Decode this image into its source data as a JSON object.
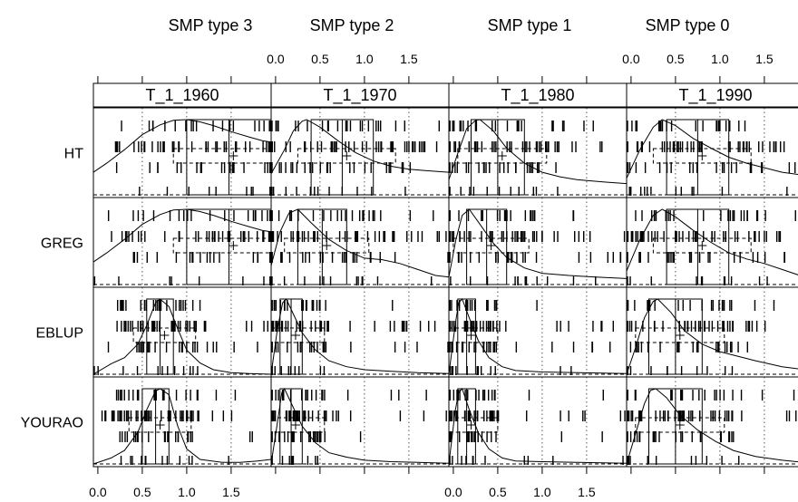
{
  "top_labels": [
    "SMP type 3",
    "SMP type 2",
    "SMP type 1",
    "SMP type 0"
  ],
  "chart_data": {
    "type": "trellis density / rug plot",
    "x_tick_labels": [
      "0.0",
      "0.5",
      "1.0",
      "1.5"
    ],
    "x_ticks": [
      0,
      0.5,
      1.0,
      1.5
    ],
    "xlim": [
      -0.05,
      1.95
    ],
    "top_axis_panels": [
      1,
      3
    ],
    "bottom_axis_panels": [
      0,
      2
    ],
    "columns": [
      "T_1_1960",
      "T_1_1970",
      "T_1_1980",
      "T_1_1990"
    ],
    "rows": [
      "HT",
      "GREG",
      "EBLUP",
      "YOURAO"
    ],
    "reference_lines": [
      0.5,
      1.0,
      1.5
    ],
    "density": {
      "T_1_1960": {
        "HT": [
          [
            -0.05,
            0.3
          ],
          [
            0.1,
            0.42
          ],
          [
            0.3,
            0.6
          ],
          [
            0.5,
            0.8
          ],
          [
            0.7,
            0.93
          ],
          [
            0.85,
            0.99
          ],
          [
            1.0,
            1.0
          ],
          [
            1.15,
            0.97
          ],
          [
            1.3,
            0.92
          ],
          [
            1.5,
            0.84
          ],
          [
            1.7,
            0.77
          ],
          [
            1.85,
            0.72
          ],
          [
            1.95,
            0.7
          ]
        ],
        "GREG": [
          [
            -0.05,
            0.3
          ],
          [
            0.1,
            0.42
          ],
          [
            0.3,
            0.6
          ],
          [
            0.5,
            0.8
          ],
          [
            0.7,
            0.93
          ],
          [
            0.85,
            0.99
          ],
          [
            1.0,
            1.0
          ],
          [
            1.15,
            0.97
          ],
          [
            1.3,
            0.92
          ],
          [
            1.5,
            0.84
          ],
          [
            1.7,
            0.77
          ],
          [
            1.85,
            0.72
          ],
          [
            1.95,
            0.7
          ]
        ],
        "EBLUP": [
          [
            -0.05,
            0.0
          ],
          [
            0.15,
            0.14
          ],
          [
            0.3,
            0.22
          ],
          [
            0.45,
            0.4
          ],
          [
            0.55,
            0.65
          ],
          [
            0.65,
            0.95
          ],
          [
            0.7,
            1.0
          ],
          [
            0.8,
            0.9
          ],
          [
            0.9,
            0.6
          ],
          [
            1.0,
            0.32
          ],
          [
            1.15,
            0.15
          ],
          [
            1.3,
            0.06
          ],
          [
            1.5,
            0.02
          ],
          [
            1.7,
            0.01
          ],
          [
            1.95,
            0.0
          ]
        ],
        "YOURAO": [
          [
            -0.05,
            0.0
          ],
          [
            0.15,
            0.08
          ],
          [
            0.3,
            0.18
          ],
          [
            0.45,
            0.42
          ],
          [
            0.55,
            0.72
          ],
          [
            0.65,
            0.97
          ],
          [
            0.7,
            1.0
          ],
          [
            0.8,
            0.92
          ],
          [
            0.9,
            0.5
          ],
          [
            1.0,
            0.2
          ],
          [
            1.15,
            0.06
          ],
          [
            1.4,
            0.02
          ],
          [
            1.6,
            0.02
          ],
          [
            1.8,
            0.04
          ],
          [
            1.95,
            0.06
          ]
        ]
      },
      "T_1_1970": {
        "HT": [
          [
            -0.05,
            0.28
          ],
          [
            0.1,
            0.6
          ],
          [
            0.2,
            0.85
          ],
          [
            0.3,
            0.98
          ],
          [
            0.35,
            1.0
          ],
          [
            0.5,
            0.9
          ],
          [
            0.7,
            0.72
          ],
          [
            0.9,
            0.56
          ],
          [
            1.1,
            0.45
          ],
          [
            1.3,
            0.38
          ],
          [
            1.5,
            0.34
          ],
          [
            1.7,
            0.32
          ],
          [
            1.95,
            0.3
          ]
        ],
        "GREG": [
          [
            -0.05,
            0.25
          ],
          [
            0.05,
            0.7
          ],
          [
            0.15,
            0.95
          ],
          [
            0.25,
            1.0
          ],
          [
            0.4,
            0.82
          ],
          [
            0.6,
            0.6
          ],
          [
            0.8,
            0.45
          ],
          [
            1.0,
            0.35
          ],
          [
            1.2,
            0.33
          ],
          [
            1.4,
            0.28
          ],
          [
            1.6,
            0.2
          ],
          [
            1.8,
            0.12
          ],
          [
            1.95,
            0.1
          ]
        ],
        "EBLUP": [
          [
            -0.05,
            0.0
          ],
          [
            0.02,
            0.6
          ],
          [
            0.08,
            0.95
          ],
          [
            0.12,
            1.0
          ],
          [
            0.2,
            0.8
          ],
          [
            0.3,
            0.55
          ],
          [
            0.45,
            0.32
          ],
          [
            0.6,
            0.18
          ],
          [
            0.8,
            0.1
          ],
          [
            1.0,
            0.06
          ],
          [
            1.3,
            0.04
          ],
          [
            1.6,
            0.02
          ],
          [
            1.95,
            0.01
          ]
        ],
        "YOURAO": [
          [
            -0.05,
            0.0
          ],
          [
            0.02,
            0.55
          ],
          [
            0.07,
            0.95
          ],
          [
            0.1,
            1.0
          ],
          [
            0.18,
            0.8
          ],
          [
            0.3,
            0.5
          ],
          [
            0.45,
            0.28
          ],
          [
            0.6,
            0.15
          ],
          [
            0.8,
            0.09
          ],
          [
            1.0,
            0.05
          ],
          [
            1.3,
            0.03
          ],
          [
            1.6,
            0.02
          ],
          [
            1.95,
            0.01
          ]
        ]
      },
      "T_1_1980": {
        "HT": [
          [
            -0.05,
            0.2
          ],
          [
            0.05,
            0.55
          ],
          [
            0.15,
            0.88
          ],
          [
            0.25,
            0.99
          ],
          [
            0.3,
            1.0
          ],
          [
            0.45,
            0.85
          ],
          [
            0.6,
            0.62
          ],
          [
            0.8,
            0.42
          ],
          [
            1.0,
            0.3
          ],
          [
            1.2,
            0.24
          ],
          [
            1.4,
            0.2
          ],
          [
            1.7,
            0.17
          ],
          [
            1.95,
            0.15
          ]
        ],
        "GREG": [
          [
            -0.05,
            0.1
          ],
          [
            0.03,
            0.6
          ],
          [
            0.1,
            0.92
          ],
          [
            0.18,
            1.0
          ],
          [
            0.3,
            0.8
          ],
          [
            0.45,
            0.55
          ],
          [
            0.6,
            0.36
          ],
          [
            0.8,
            0.22
          ],
          [
            1.0,
            0.15
          ],
          [
            1.3,
            0.12
          ],
          [
            1.6,
            0.1
          ],
          [
            1.95,
            0.08
          ]
        ],
        "EBLUP": [
          [
            -0.05,
            0.0
          ],
          [
            0.02,
            0.65
          ],
          [
            0.06,
            0.95
          ],
          [
            0.1,
            1.0
          ],
          [
            0.18,
            0.75
          ],
          [
            0.28,
            0.45
          ],
          [
            0.4,
            0.22
          ],
          [
            0.55,
            0.1
          ],
          [
            0.7,
            0.05
          ],
          [
            1.0,
            0.03
          ],
          [
            1.4,
            0.02
          ],
          [
            1.95,
            0.01
          ]
        ],
        "YOURAO": [
          [
            -0.05,
            0.0
          ],
          [
            0.02,
            0.7
          ],
          [
            0.06,
            0.95
          ],
          [
            0.1,
            1.0
          ],
          [
            0.18,
            0.72
          ],
          [
            0.28,
            0.42
          ],
          [
            0.4,
            0.2
          ],
          [
            0.55,
            0.08
          ],
          [
            0.7,
            0.04
          ],
          [
            1.0,
            0.03
          ],
          [
            1.4,
            0.02
          ],
          [
            1.95,
            0.01
          ]
        ]
      },
      "T_1_1990": {
        "HT": [
          [
            -0.05,
            0.22
          ],
          [
            0.1,
            0.6
          ],
          [
            0.25,
            0.9
          ],
          [
            0.35,
            1.0
          ],
          [
            0.5,
            0.92
          ],
          [
            0.7,
            0.75
          ],
          [
            0.9,
            0.62
          ],
          [
            1.1,
            0.5
          ],
          [
            1.3,
            0.42
          ],
          [
            1.5,
            0.36
          ],
          [
            1.7,
            0.3
          ],
          [
            1.95,
            0.26
          ]
        ],
        "GREG": [
          [
            -0.05,
            0.18
          ],
          [
            0.1,
            0.6
          ],
          [
            0.25,
            0.92
          ],
          [
            0.35,
            1.0
          ],
          [
            0.5,
            0.9
          ],
          [
            0.7,
            0.72
          ],
          [
            0.9,
            0.56
          ],
          [
            1.1,
            0.42
          ],
          [
            1.3,
            0.34
          ],
          [
            1.5,
            0.28
          ],
          [
            1.7,
            0.2
          ],
          [
            1.95,
            0.1
          ]
        ],
        "EBLUP": [
          [
            -0.05,
            0.0
          ],
          [
            0.05,
            0.35
          ],
          [
            0.15,
            0.75
          ],
          [
            0.25,
            0.97
          ],
          [
            0.3,
            1.0
          ],
          [
            0.45,
            0.82
          ],
          [
            0.6,
            0.58
          ],
          [
            0.8,
            0.4
          ],
          [
            1.0,
            0.3
          ],
          [
            1.2,
            0.24
          ],
          [
            1.4,
            0.18
          ],
          [
            1.7,
            0.1
          ],
          [
            1.95,
            0.06
          ]
        ],
        "YOURAO": [
          [
            -0.05,
            0.0
          ],
          [
            0.05,
            0.4
          ],
          [
            0.15,
            0.8
          ],
          [
            0.22,
            0.98
          ],
          [
            0.28,
            1.0
          ],
          [
            0.4,
            0.88
          ],
          [
            0.55,
            0.65
          ],
          [
            0.75,
            0.45
          ],
          [
            0.95,
            0.3
          ],
          [
            1.15,
            0.18
          ],
          [
            1.4,
            0.1
          ],
          [
            1.7,
            0.05
          ],
          [
            1.95,
            0.02
          ]
        ]
      }
    },
    "box_ranges": {
      "T_1_1960": {
        "HT": [
          1.0,
          1.95
        ],
        "GREG": [
          1.0,
          1.95
        ],
        "EBLUP": [
          0.55,
          0.85
        ],
        "YOURAO": [
          0.5,
          0.8
        ]
      },
      "T_1_1970": {
        "HT": [
          0.4,
          1.1
        ],
        "GREG": [
          0.25,
          0.8
        ],
        "EBLUP": [
          0.05,
          0.3
        ],
        "YOURAO": [
          0.05,
          0.3
        ]
      },
      "T_1_1980": {
        "HT": [
          0.2,
          0.8
        ],
        "GREG": [
          0.15,
          0.6
        ],
        "EBLUP": [
          0.05,
          0.25
        ],
        "YOURAO": [
          0.05,
          0.25
        ]
      },
      "T_1_1990": {
        "HT": [
          0.4,
          1.1
        ],
        "GREG": [
          0.4,
          1.1
        ],
        "EBLUP": [
          0.2,
          0.8
        ],
        "YOURAO": [
          0.2,
          0.8
        ]
      }
    }
  }
}
